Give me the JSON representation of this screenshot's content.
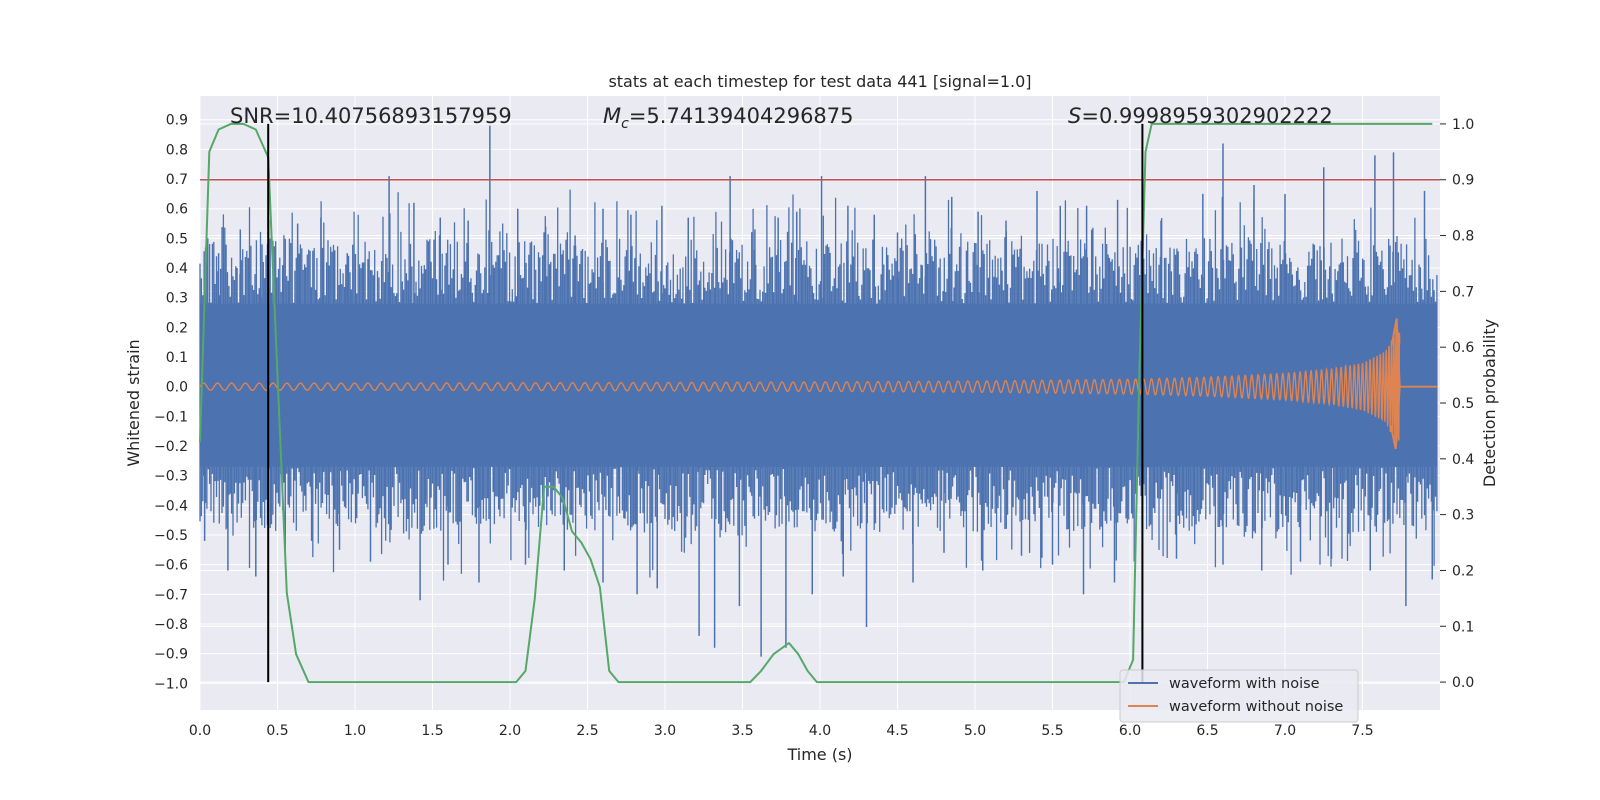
{
  "chart_data": {
    "type": "line",
    "title": "stats at each timestep for test data 441 [signal=1.0]",
    "xlabel": "Time (s)",
    "ylabel": "Whitened strain",
    "y2label": "Detection probability",
    "xlim": [
      0.0,
      8.0
    ],
    "ylim": [
      -1.09,
      0.98
    ],
    "y2lim": [
      -0.05,
      1.05
    ],
    "xticks": [
      0.0,
      0.5,
      1.0,
      1.5,
      2.0,
      2.5,
      3.0,
      3.5,
      4.0,
      4.5,
      5.0,
      5.5,
      6.0,
      6.5,
      7.0,
      7.5
    ],
    "xtick_labels": [
      "0.0",
      "0.5",
      "1.0",
      "1.5",
      "2.0",
      "2.5",
      "3.0",
      "3.5",
      "4.0",
      "4.5",
      "5.0",
      "5.5",
      "6.0",
      "6.5",
      "7.0",
      "7.5"
    ],
    "yticks": [
      0.9,
      0.8,
      0.7,
      0.6,
      0.5,
      0.4,
      0.3,
      0.2,
      0.1,
      0.0,
      -0.1,
      -0.2,
      -0.3,
      -0.4,
      -0.5,
      -0.6,
      -0.7,
      -0.8,
      -0.9,
      -1.0
    ],
    "ytick_labels": [
      "0.9",
      "0.8",
      "0.7",
      "0.6",
      "0.5",
      "0.4",
      "0.3",
      "0.2",
      "0.1",
      "0.0",
      "−0.1",
      "−0.2",
      "−0.3",
      "−0.4",
      "−0.5",
      "−0.6",
      "−0.7",
      "−0.8",
      "−0.9",
      "−1.0"
    ],
    "y2ticks": [
      1.0,
      0.9,
      0.8,
      0.7,
      0.6,
      0.5,
      0.4,
      0.3,
      0.2,
      0.1,
      0.0
    ],
    "y2tick_labels": [
      "1.0",
      "0.9",
      "0.8",
      "0.7",
      "0.6",
      "0.5",
      "0.4",
      "0.3",
      "0.2",
      "0.1",
      "0.0"
    ],
    "annotations": {
      "snr": "SNR=10.40756893157959",
      "mc_symbol": "M",
      "mc_sub": "c",
      "mc_value": "=5.74139404296875",
      "s_symbol": "S",
      "s_value": "=0.9998959302902222"
    },
    "threshold": 0.9,
    "vlines": [
      0.44,
      6.08
    ],
    "legend": {
      "location": "lower-right",
      "entries": [
        {
          "label": "waveform with noise",
          "color": "#4c72b0"
        },
        {
          "label": "waveform without noise",
          "color": "#dd8452"
        }
      ]
    },
    "noisy_envelope": {
      "color": "#4c72b0",
      "band_high": 0.28,
      "band_low": -0.27,
      "peaks": [
        {
          "x": 0.05,
          "y": 0.5
        },
        {
          "x": 0.12,
          "y": 0.45
        },
        {
          "x": 0.26,
          "y": 0.53
        },
        {
          "x": 0.4,
          "y": 0.48
        },
        {
          "x": 0.44,
          "y": 0.64
        },
        {
          "x": 0.63,
          "y": 0.55
        },
        {
          "x": 0.78,
          "y": 0.57
        },
        {
          "x": 0.95,
          "y": 0.45
        },
        {
          "x": 1.22,
          "y": 0.71
        },
        {
          "x": 1.38,
          "y": 0.62
        },
        {
          "x": 1.55,
          "y": 0.57
        },
        {
          "x": 1.73,
          "y": 0.56
        },
        {
          "x": 1.87,
          "y": 0.88
        },
        {
          "x": 2.05,
          "y": 0.6
        },
        {
          "x": 2.23,
          "y": 0.54
        },
        {
          "x": 2.42,
          "y": 0.51
        },
        {
          "x": 2.6,
          "y": 0.6
        },
        {
          "x": 2.78,
          "y": 0.58
        },
        {
          "x": 2.98,
          "y": 0.61
        },
        {
          "x": 3.15,
          "y": 0.57
        },
        {
          "x": 3.42,
          "y": 0.71
        },
        {
          "x": 3.58,
          "y": 0.53
        },
        {
          "x": 3.73,
          "y": 0.57
        },
        {
          "x": 3.85,
          "y": 0.59
        },
        {
          "x": 4.01,
          "y": 0.71
        },
        {
          "x": 4.18,
          "y": 0.61
        },
        {
          "x": 4.35,
          "y": 0.58
        },
        {
          "x": 4.5,
          "y": 0.52
        },
        {
          "x": 4.68,
          "y": 0.71
        },
        {
          "x": 4.85,
          "y": 0.64
        },
        {
          "x": 5.02,
          "y": 0.59
        },
        {
          "x": 5.2,
          "y": 0.56
        },
        {
          "x": 5.4,
          "y": 0.66
        },
        {
          "x": 5.55,
          "y": 0.61
        },
        {
          "x": 5.72,
          "y": 0.61
        },
        {
          "x": 5.92,
          "y": 0.63
        },
        {
          "x": 6.2,
          "y": 0.56
        },
        {
          "x": 6.47,
          "y": 0.65
        },
        {
          "x": 6.6,
          "y": 0.82
        },
        {
          "x": 6.8,
          "y": 0.68
        },
        {
          "x": 7.0,
          "y": 0.65
        },
        {
          "x": 7.25,
          "y": 0.74
        },
        {
          "x": 7.58,
          "y": 0.78
        },
        {
          "x": 7.7,
          "y": 0.79
        },
        {
          "x": 7.9,
          "y": 0.66
        }
      ],
      "troughs": [
        {
          "x": 0.03,
          "y": -0.52
        },
        {
          "x": 0.18,
          "y": -0.62
        },
        {
          "x": 0.36,
          "y": -0.64
        },
        {
          "x": 0.55,
          "y": -0.6
        },
        {
          "x": 0.72,
          "y": -0.52
        },
        {
          "x": 0.9,
          "y": -0.55
        },
        {
          "x": 1.1,
          "y": -0.59
        },
        {
          "x": 1.42,
          "y": -0.72
        },
        {
          "x": 1.6,
          "y": -0.6
        },
        {
          "x": 1.8,
          "y": -0.66
        },
        {
          "x": 2.1,
          "y": -0.6
        },
        {
          "x": 2.35,
          "y": -0.62
        },
        {
          "x": 2.6,
          "y": -0.66
        },
        {
          "x": 2.82,
          "y": -0.7
        },
        {
          "x": 2.95,
          "y": -0.68
        },
        {
          "x": 3.22,
          "y": -0.84
        },
        {
          "x": 3.32,
          "y": -0.88
        },
        {
          "x": 3.48,
          "y": -0.74
        },
        {
          "x": 3.62,
          "y": -0.91
        },
        {
          "x": 3.78,
          "y": -0.88
        },
        {
          "x": 3.95,
          "y": -0.7
        },
        {
          "x": 4.15,
          "y": -0.64
        },
        {
          "x": 4.3,
          "y": -0.81
        },
        {
          "x": 4.6,
          "y": -0.66
        },
        {
          "x": 4.8,
          "y": -0.56
        },
        {
          "x": 5.05,
          "y": -0.62
        },
        {
          "x": 5.3,
          "y": -0.57
        },
        {
          "x": 5.5,
          "y": -0.6
        },
        {
          "x": 5.7,
          "y": -0.7
        },
        {
          "x": 5.9,
          "y": -0.66
        },
        {
          "x": 6.08,
          "y": -1.0
        },
        {
          "x": 6.3,
          "y": -0.58
        },
        {
          "x": 6.6,
          "y": -0.6
        },
        {
          "x": 6.85,
          "y": -0.62
        },
        {
          "x": 7.1,
          "y": -0.59
        },
        {
          "x": 7.3,
          "y": -0.58
        },
        {
          "x": 7.55,
          "y": -0.62
        },
        {
          "x": 7.78,
          "y": -0.74
        },
        {
          "x": 7.95,
          "y": -0.65
        }
      ]
    },
    "clean_waveform": {
      "color": "#dd8452",
      "amp_start": 0.012,
      "merger_time": 7.74,
      "peak_positive": 0.23,
      "peak_negative": -0.21,
      "x": [
        0.0,
        1.0,
        2.0,
        3.0,
        4.0,
        5.0,
        6.0,
        6.5,
        7.0,
        7.3,
        7.5,
        7.65,
        7.72
      ],
      "envelope": [
        0.012,
        0.012,
        0.013,
        0.014,
        0.016,
        0.019,
        0.025,
        0.032,
        0.045,
        0.06,
        0.08,
        0.12,
        0.2
      ]
    },
    "detection_probability": {
      "color": "#55a868",
      "x": [
        0.0,
        0.06,
        0.12,
        0.2,
        0.28,
        0.36,
        0.44,
        0.5,
        0.56,
        0.62,
        0.7,
        1.0,
        1.5,
        1.9,
        1.98,
        2.04,
        2.1,
        2.16,
        2.22,
        2.28,
        2.34,
        2.4,
        2.46,
        2.52,
        2.58,
        2.64,
        2.7,
        3.0,
        3.2,
        3.4,
        3.55,
        3.62,
        3.7,
        3.8,
        3.86,
        3.92,
        3.98,
        4.1,
        4.5,
        5.0,
        5.5,
        5.96,
        6.02,
        6.06,
        6.1,
        6.14,
        6.2,
        7.0,
        7.95
      ],
      "y": [
        0.43,
        0.95,
        0.99,
        1.0,
        1.0,
        0.99,
        0.94,
        0.55,
        0.16,
        0.05,
        0.0,
        0.0,
        0.0,
        0.0,
        0.0,
        0.0,
        0.02,
        0.15,
        0.35,
        0.35,
        0.33,
        0.27,
        0.25,
        0.22,
        0.17,
        0.02,
        0.0,
        0.0,
        0.0,
        0.0,
        0.0,
        0.02,
        0.05,
        0.07,
        0.05,
        0.02,
        0.0,
        0.0,
        0.0,
        0.0,
        0.0,
        0.0,
        0.04,
        0.55,
        0.95,
        1.0,
        1.0,
        1.0,
        1.0
      ]
    }
  }
}
